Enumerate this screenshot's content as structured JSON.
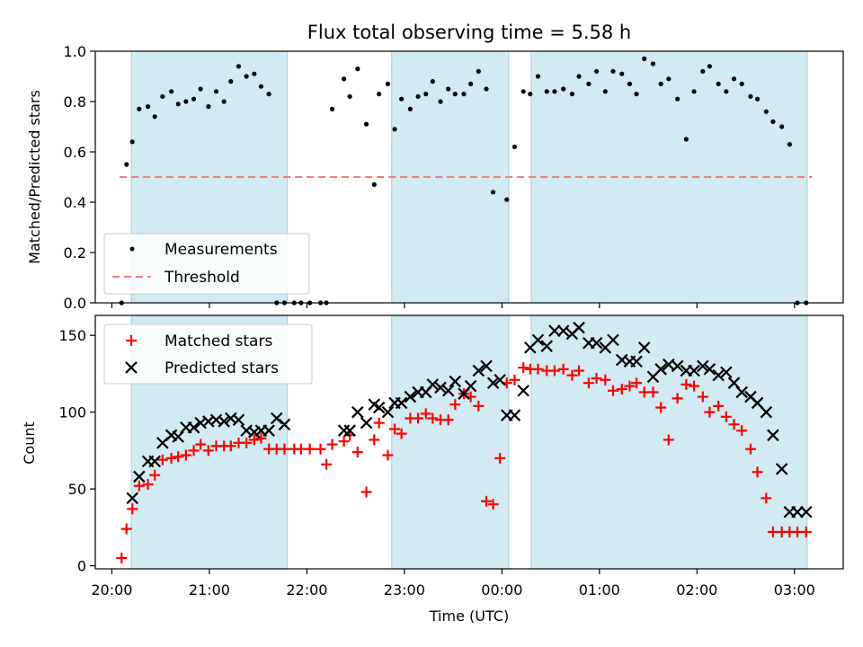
{
  "chart_data": [
    {
      "type": "scatter",
      "title": "Flux total observing time = 5.58 h",
      "ylabel": "Matched/Predicted stars",
      "xlabel": "",
      "ylim": [
        0,
        1.0
      ],
      "y_ticks": [
        "0.0",
        "0.2",
        "0.4",
        "0.6",
        "0.8",
        "1.0"
      ],
      "grid": false,
      "legend_position": "lower-left",
      "shaded_intervals_hours": [
        [
          20.2,
          21.8
        ],
        [
          22.87,
          24.07
        ],
        [
          24.3,
          27.13
        ]
      ],
      "threshold": {
        "name": "Threshold",
        "value": 0.5,
        "x_range": [
          20.08,
          27.18
        ],
        "color": "#f08080"
      },
      "series": [
        {
          "name": "Measurements",
          "marker": "dot",
          "color": "#000000",
          "x": [
            20.1,
            20.15,
            20.21,
            20.28,
            20.37,
            20.44,
            20.52,
            20.61,
            20.68,
            20.76,
            20.84,
            20.91,
            20.99,
            21.07,
            21.15,
            21.22,
            21.3,
            21.38,
            21.46,
            21.53,
            21.61,
            21.69,
            21.77,
            21.87,
            21.94,
            22.03,
            22.14,
            22.2,
            22.26,
            22.38,
            22.44,
            22.52,
            22.61,
            22.69,
            22.74,
            22.83,
            22.9,
            22.97,
            23.06,
            23.14,
            23.22,
            23.29,
            23.37,
            23.45,
            23.52,
            23.61,
            23.68,
            23.76,
            23.84,
            23.91,
            24.05,
            24.13,
            24.22,
            24.29,
            24.37,
            24.46,
            24.54,
            24.63,
            24.72,
            24.79,
            24.89,
            24.97,
            25.06,
            25.14,
            25.23,
            25.31,
            25.38,
            25.46,
            25.55,
            25.63,
            25.71,
            25.8,
            25.89,
            25.97,
            26.06,
            26.13,
            26.22,
            26.3,
            26.38,
            26.46,
            26.55,
            26.62,
            26.71,
            26.78,
            26.87,
            26.95,
            27.03,
            27.12
          ],
          "y": [
            0.0,
            0.55,
            0.64,
            0.77,
            0.78,
            0.74,
            0.82,
            0.84,
            0.79,
            0.8,
            0.81,
            0.85,
            0.78,
            0.84,
            0.8,
            0.88,
            0.94,
            0.9,
            0.91,
            0.86,
            0.83,
            0.0,
            0.0,
            0.0,
            0.0,
            0.0,
            0.0,
            0.0,
            0.77,
            0.89,
            0.82,
            0.93,
            0.71,
            0.47,
            0.83,
            0.87,
            0.69,
            0.81,
            0.77,
            0.82,
            0.83,
            0.88,
            0.8,
            0.85,
            0.83,
            0.83,
            0.87,
            0.92,
            0.85,
            0.44,
            0.41,
            0.62,
            0.84,
            0.83,
            0.9,
            0.84,
            0.84,
            0.85,
            0.83,
            0.9,
            0.87,
            0.92,
            0.84,
            0.92,
            0.91,
            0.87,
            0.83,
            0.97,
            0.95,
            0.87,
            0.89,
            0.81,
            0.65,
            0.84,
            0.92,
            0.94,
            0.87,
            0.84,
            0.89,
            0.87,
            0.82,
            0.81,
            0.76,
            0.72,
            0.7,
            0.63,
            0.0,
            0.0
          ]
        }
      ]
    },
    {
      "type": "scatter",
      "title": "",
      "xlabel": "Time (UTC)",
      "ylabel": "Count",
      "ylim": [
        -2,
        163
      ],
      "y_ticks": [
        "0",
        "50",
        "100",
        "150"
      ],
      "x_ticks": [
        "20:00",
        "21:00",
        "22:00",
        "23:00",
        "00:00",
        "01:00",
        "02:00",
        "03:00"
      ],
      "xlim_hours": [
        19.83,
        27.5
      ],
      "grid": false,
      "legend_position": "upper-left",
      "shaded_intervals_hours": [
        [
          20.2,
          21.8
        ],
        [
          22.87,
          24.07
        ],
        [
          24.3,
          27.13
        ]
      ],
      "series": [
        {
          "name": "Matched stars",
          "marker": "plus",
          "color": "#ff0000",
          "x": [
            20.1,
            20.15,
            20.21,
            20.28,
            20.37,
            20.44,
            20.52,
            20.61,
            20.68,
            20.76,
            20.84,
            20.91,
            20.99,
            21.07,
            21.15,
            21.22,
            21.3,
            21.38,
            21.46,
            21.53,
            21.61,
            21.69,
            21.77,
            21.87,
            21.94,
            22.03,
            22.14,
            22.2,
            22.26,
            22.38,
            22.44,
            22.52,
            22.61,
            22.69,
            22.74,
            22.83,
            22.9,
            22.97,
            23.06,
            23.14,
            23.22,
            23.29,
            23.37,
            23.45,
            23.52,
            23.61,
            23.68,
            23.76,
            23.84,
            23.91,
            23.98,
            24.05,
            24.13,
            24.22,
            24.29,
            24.37,
            24.46,
            24.54,
            24.63,
            24.72,
            24.79,
            24.89,
            24.97,
            25.06,
            25.14,
            25.23,
            25.31,
            25.38,
            25.46,
            25.55,
            25.63,
            25.71,
            25.8,
            25.89,
            25.97,
            26.06,
            26.13,
            26.22,
            26.3,
            26.38,
            26.46,
            26.55,
            26.62,
            26.71,
            26.78,
            26.87,
            26.95,
            27.03,
            27.12
          ],
          "y": [
            5,
            24,
            37,
            52,
            53,
            59,
            69,
            70,
            71,
            72,
            75,
            79,
            75,
            78,
            78,
            78,
            80,
            80,
            82,
            83,
            76,
            76,
            76,
            76,
            76,
            76,
            76,
            66,
            79,
            81,
            85,
            74,
            48,
            82,
            93,
            72,
            89,
            86,
            96,
            96,
            99,
            96,
            95,
            95,
            105,
            112,
            110,
            104,
            42,
            40,
            70,
            119,
            121,
            129,
            128,
            128,
            127,
            127,
            128,
            124,
            127,
            119,
            122,
            121,
            114,
            115,
            117,
            119,
            113,
            113,
            103,
            82,
            109,
            118,
            117,
            110,
            100,
            104,
            97,
            92,
            88,
            76,
            61,
            44,
            22,
            22,
            22,
            22,
            22
          ],
          "y_note": ""
        },
        {
          "name": "Predicted stars",
          "marker": "x",
          "color": "#000000",
          "x": [
            20.21,
            20.28,
            20.37,
            20.44,
            20.52,
            20.61,
            20.68,
            20.76,
            20.84,
            20.91,
            20.99,
            21.07,
            21.15,
            21.22,
            21.3,
            21.38,
            21.46,
            21.53,
            21.61,
            21.69,
            21.77,
            22.38,
            22.44,
            22.52,
            22.61,
            22.69,
            22.74,
            22.83,
            22.9,
            22.97,
            23.06,
            23.14,
            23.22,
            23.29,
            23.37,
            23.45,
            23.52,
            23.61,
            23.68,
            23.76,
            23.84,
            23.91,
            23.98,
            24.05,
            24.13,
            24.22,
            24.29,
            24.37,
            24.46,
            24.54,
            24.63,
            24.72,
            24.79,
            24.89,
            24.97,
            25.06,
            25.14,
            25.23,
            25.31,
            25.38,
            25.46,
            25.55,
            25.63,
            25.71,
            25.8,
            25.89,
            25.97,
            26.06,
            26.13,
            26.22,
            26.3,
            26.38,
            26.46,
            26.55,
            26.62,
            26.71,
            26.78,
            26.87,
            26.95,
            27.03,
            27.12
          ],
          "y": [
            44,
            58,
            68,
            68,
            80,
            85,
            84,
            90,
            90,
            93,
            94,
            95,
            94,
            96,
            95,
            88,
            87,
            88,
            88,
            96,
            92,
            88,
            88,
            100,
            93,
            105,
            103,
            100,
            106,
            106,
            110,
            113,
            113,
            118,
            116,
            114,
            120,
            112,
            117,
            127,
            130,
            119,
            121,
            98,
            98,
            114,
            142,
            147,
            143,
            153,
            153,
            151,
            155,
            145,
            145,
            142,
            147,
            134,
            133,
            133,
            142,
            123,
            128,
            131,
            130,
            127,
            127,
            130,
            128,
            124,
            126,
            119,
            113,
            110,
            106,
            100,
            85,
            63,
            35,
            35,
            35
          ]
        }
      ]
    }
  ]
}
